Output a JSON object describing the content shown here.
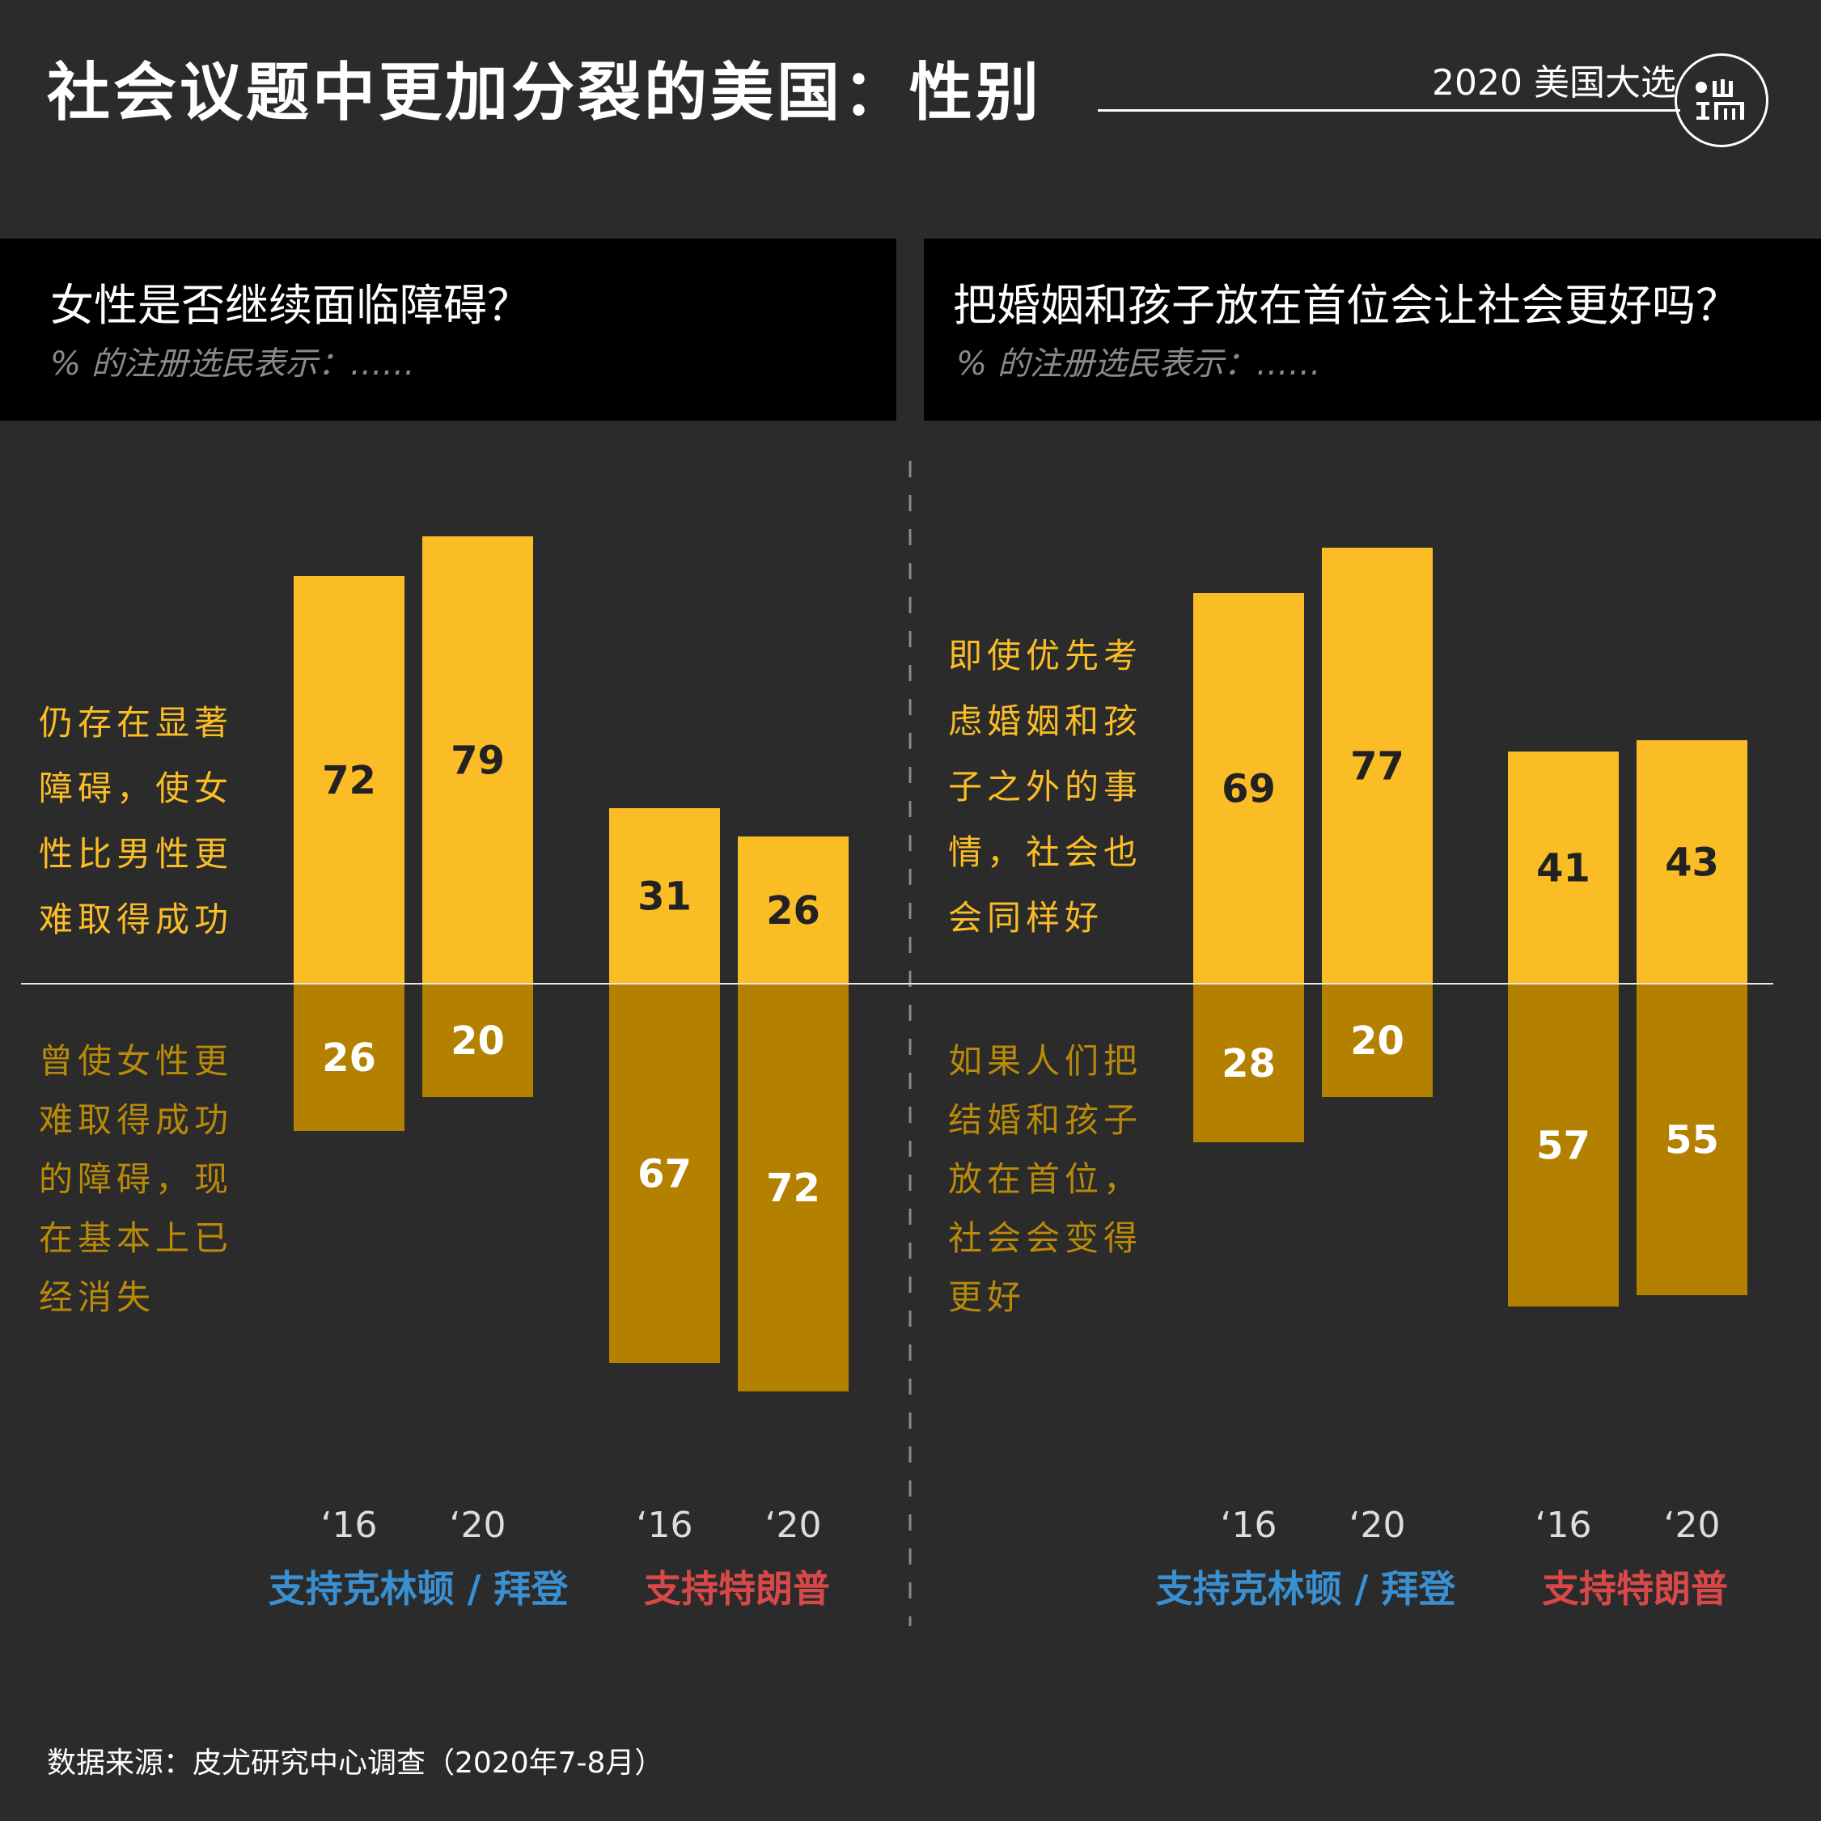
{
  "title": "社会议题中更加分裂的美国：性别",
  "brand": {
    "tag": "2020 美国大选",
    "logo_icon": "duan-logo-icon"
  },
  "colors": {
    "background": "#2b2b2b",
    "bar_positive": "#fbbd26",
    "bar_negative": "#b38000",
    "biden_group": "#3a8fd1",
    "trump_group": "#d94848"
  },
  "panels": [
    {
      "question": "女性是否继续面临障碍？",
      "subtitle": "% 的注册选民表示：……",
      "upper_note_lines": [
        "仍存在显著",
        "障碍，使女",
        "性比男性更",
        "难取得成功"
      ],
      "lower_note_lines": [
        "曾使女性更",
        "难取得成功",
        "的障碍，现",
        "在基本上已",
        "经消失"
      ]
    },
    {
      "question": "把婚姻和孩子放在首位会让社会更好吗？",
      "subtitle": "% 的注册选民表示：……",
      "upper_note_lines": [
        "即使优先考",
        "虑婚姻和孩",
        "子之外的事",
        "情，社会也",
        "会同样好"
      ],
      "lower_note_lines": [
        "如果人们把",
        "结婚和孩子",
        "放在首位，",
        "社会会变得",
        "更好"
      ]
    }
  ],
  "chart_data": [
    {
      "type": "bar",
      "title": "女性是否继续面临障碍？",
      "categories": [
        "‘16",
        "‘20",
        "‘16",
        "‘20"
      ],
      "groups": [
        {
          "name": "支持克林顿 / 拜登",
          "categories": [
            "‘16",
            "‘20"
          ]
        },
        {
          "name": "支持特朗普",
          "categories": [
            "‘16",
            "‘20"
          ]
        }
      ],
      "series": [
        {
          "name": "仍存在显著障碍，使女性比男性更难取得成功",
          "values": [
            72,
            79,
            31,
            26
          ]
        },
        {
          "name": "曾使女性更难取得成功的障碍，现在基本上已经消失",
          "values": [
            26,
            20,
            67,
            72
          ]
        }
      ],
      "ylim": [
        -100,
        100
      ]
    },
    {
      "type": "bar",
      "title": "把婚姻和孩子放在首位会让社会更好吗？",
      "categories": [
        "‘16",
        "‘20",
        "‘16",
        "‘20"
      ],
      "groups": [
        {
          "name": "支持克林顿 / 拜登",
          "categories": [
            "‘16",
            "‘20"
          ]
        },
        {
          "name": "支持特朗普",
          "categories": [
            "‘16",
            "‘20"
          ]
        }
      ],
      "series": [
        {
          "name": "即使优先考虑婚姻和孩子之外的事情，社会也会同样好",
          "values": [
            69,
            77,
            41,
            43
          ]
        },
        {
          "name": "如果人们把结婚和孩子放在首位，社会会变得更好",
          "values": [
            28,
            20,
            57,
            55
          ]
        }
      ],
      "ylim": [
        -100,
        100
      ]
    }
  ],
  "source": "数据来源：皮尤研究中心调查（2020年7-8月）"
}
